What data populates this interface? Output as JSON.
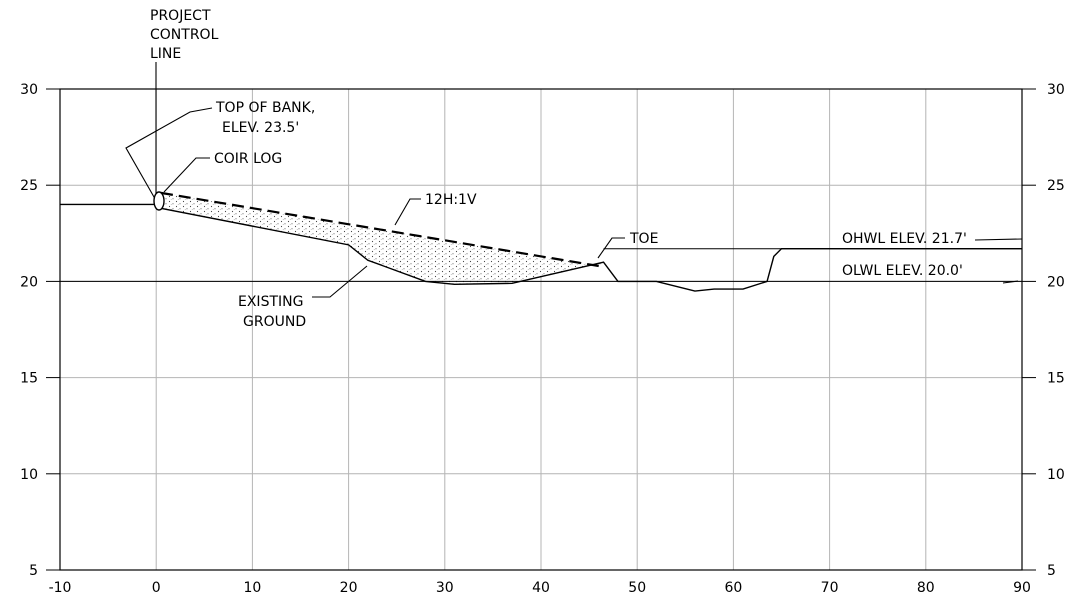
{
  "chart_data": {
    "type": "line",
    "xlim": [
      -10,
      90
    ],
    "ylim": [
      5,
      30
    ],
    "x_ticks": [
      -10,
      0,
      10,
      20,
      30,
      40,
      50,
      60,
      70,
      80,
      90
    ],
    "y_ticks": [
      5,
      10,
      15,
      20,
      25,
      30
    ],
    "grid": true,
    "series": [
      {
        "points": [
          [
            -10,
            24.0
          ],
          [
            0,
            24.0
          ],
          [
            0.5,
            23.8
          ],
          [
            20,
            21.9
          ],
          [
            22,
            21.1
          ],
          [
            28,
            20.0
          ],
          [
            31,
            19.85
          ],
          [
            37,
            19.9
          ],
          [
            46.5,
            21.0
          ],
          [
            48,
            20.0
          ],
          [
            52,
            20.0
          ],
          [
            56,
            19.5
          ],
          [
            58,
            19.6
          ],
          [
            61,
            19.6
          ],
          [
            63.5,
            20.0
          ],
          [
            64.2,
            21.3
          ],
          [
            65,
            21.7
          ],
          [
            90,
            21.7
          ]
        ]
      }
    ],
    "slope_line": [
      [
        0.5,
        24.6
      ],
      [
        46,
        20.8
      ]
    ],
    "fill_region": [
      [
        0.5,
        24.6
      ],
      [
        46,
        20.8
      ],
      [
        46.5,
        21.0
      ],
      [
        37,
        19.9
      ],
      [
        31,
        19.85
      ],
      [
        28,
        20.0
      ],
      [
        22,
        21.1
      ],
      [
        20,
        21.9
      ],
      [
        0.5,
        23.8
      ]
    ],
    "water_levels": [
      {
        "label": "OHWL ELEV. 21.7'",
        "elevation": 21.7
      },
      {
        "label": "OLWL ELEV. 20.0'",
        "elevation": 20.0
      }
    ],
    "control_line_x": 0,
    "annotations": [
      {
        "id": "project-control-line",
        "lines": [
          "PROJECT",
          "CONTROL",
          "LINE"
        ]
      },
      {
        "id": "top-of-bank",
        "lines": [
          "TOP OF BANK,",
          "ELEV. 23.5'"
        ]
      },
      {
        "id": "coir-log",
        "lines": [
          "COIR LOG"
        ]
      },
      {
        "id": "slope",
        "lines": [
          "12H:1V"
        ]
      },
      {
        "id": "toe",
        "lines": [
          "TOE"
        ]
      },
      {
        "id": "existing-ground",
        "lines": [
          "EXISTING",
          "GROUND"
        ]
      }
    ]
  }
}
